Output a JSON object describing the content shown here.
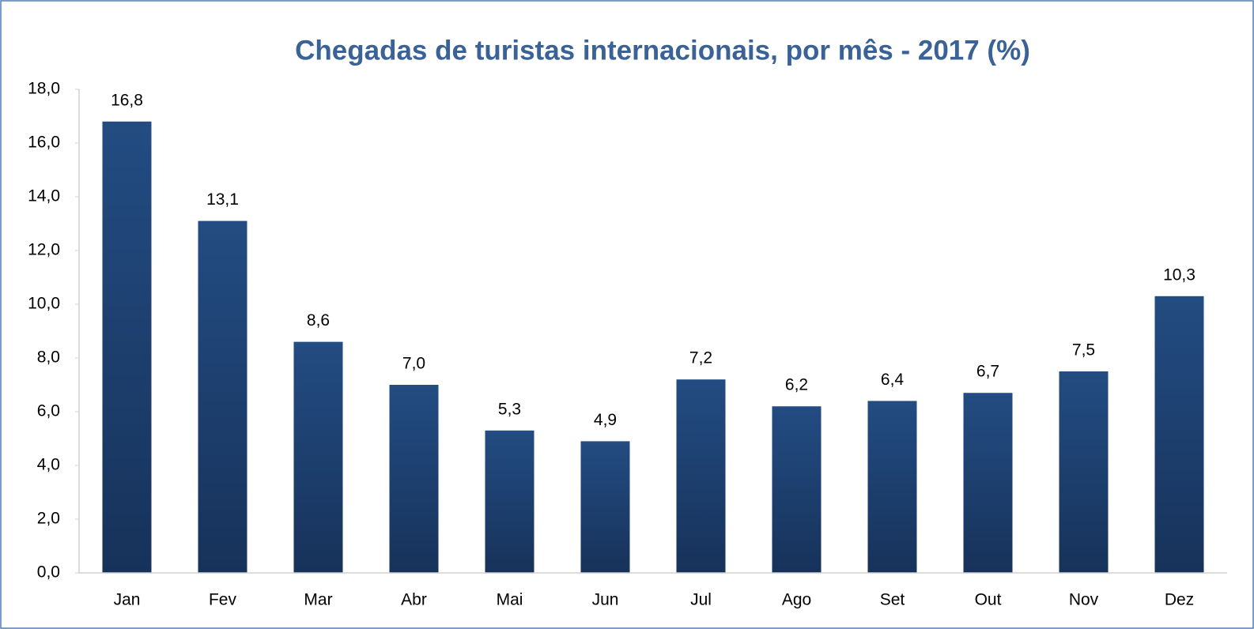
{
  "chart_data": {
    "type": "bar",
    "title": "Chegadas de turistas internacionais, por mês - 2017 (%)",
    "categories": [
      "Jan",
      "Fev",
      "Mar",
      "Abr",
      "Mai",
      "Jun",
      "Jul",
      "Ago",
      "Set",
      "Out",
      "Nov",
      "Dez"
    ],
    "values": [
      16.8,
      13.1,
      8.6,
      7.0,
      5.3,
      4.9,
      7.2,
      6.2,
      6.4,
      6.7,
      7.5,
      10.3
    ],
    "value_labels": [
      "16,8",
      "13,1",
      "8,6",
      "7,0",
      "5,3",
      "4,9",
      "7,2",
      "6,2",
      "6,4",
      "6,7",
      "7,5",
      "10,3"
    ],
    "color": "#234c82",
    "ylim": [
      0,
      18
    ],
    "yticks": [
      {
        "value": 0,
        "label": "0,0"
      },
      {
        "value": 2,
        "label": "2,0"
      },
      {
        "value": 4,
        "label": "4,0"
      },
      {
        "value": 6,
        "label": "6,0"
      },
      {
        "value": 8,
        "label": "8,0"
      },
      {
        "value": 10,
        "label": "10,0"
      },
      {
        "value": 12,
        "label": "12,0"
      },
      {
        "value": 14,
        "label": "14,0"
      },
      {
        "value": 16,
        "label": "16,0"
      },
      {
        "value": 18,
        "label": "18,0"
      }
    ],
    "grid": false
  }
}
